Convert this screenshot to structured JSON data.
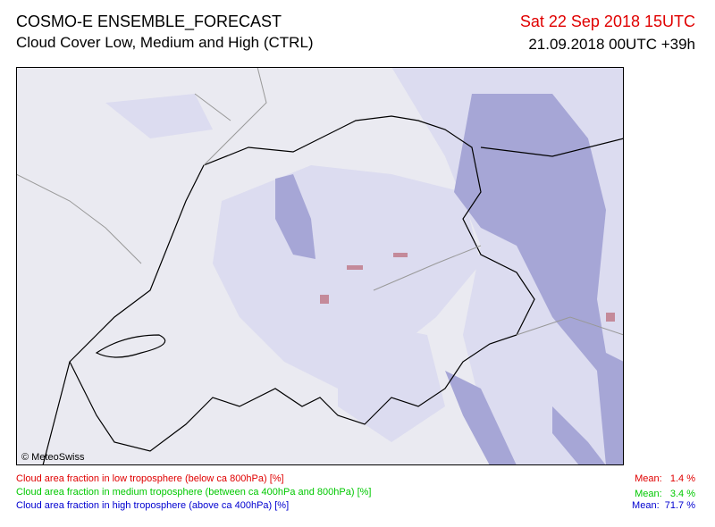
{
  "header": {
    "title": "COSMO-E ENSEMBLE_FORECAST",
    "subtitle": "Cloud Cover Low, Medium and High (CTRL)",
    "valid_time": "Sat 22 Sep 2018 15UTC",
    "run_time": "21.09.2018 00UTC +39h"
  },
  "map": {
    "credit": "© MeteoSwiss"
  },
  "legend": [
    {
      "label": "Cloud area fraction in low troposphere (below ca 800hPa) [%]",
      "mean_label": "Mean:",
      "mean_value": "1.4 %"
    },
    {
      "label": "Cloud area fraction in medium troposphere (between ca 400hPa and 800hPa) [%]",
      "mean_label": "Mean:",
      "mean_value": "3.4 %"
    },
    {
      "label": "Cloud area fraction in high troposphere (above ca 400hPa) [%]",
      "mean_label": "Mean:",
      "mean_value": "71.7 %"
    }
  ]
}
